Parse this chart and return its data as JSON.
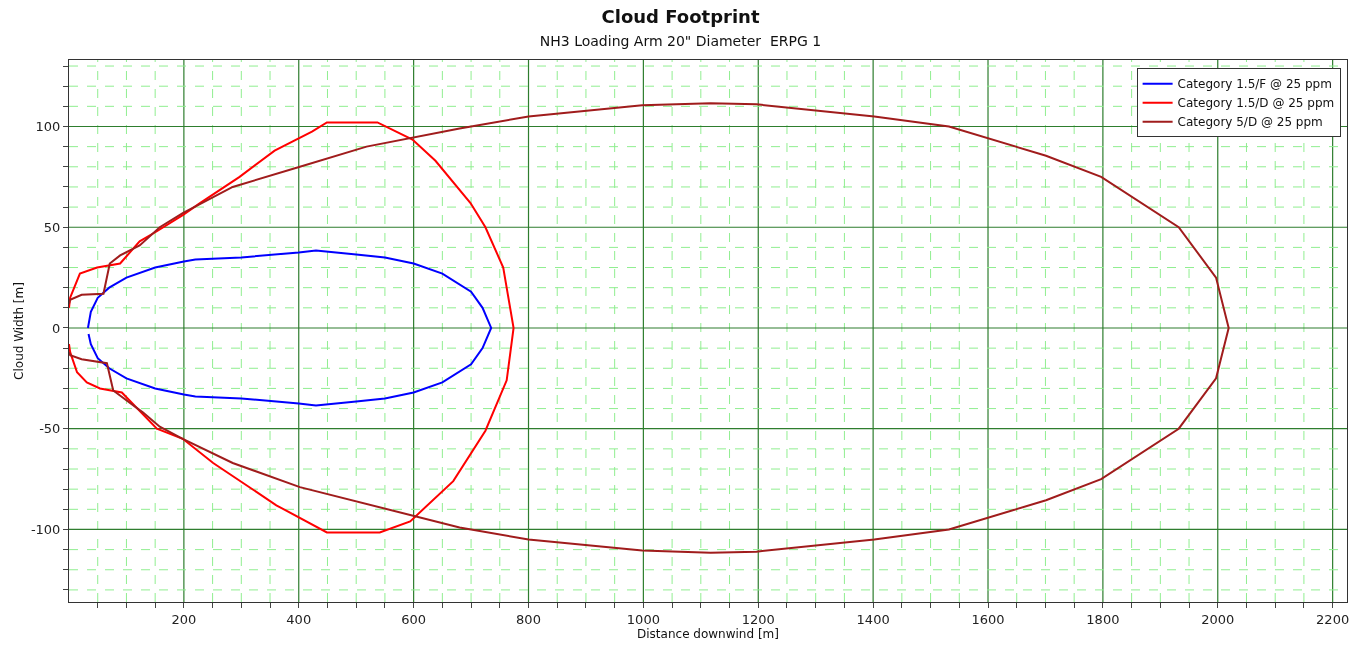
{
  "chart_data": {
    "type": "line",
    "title": "Cloud Footprint",
    "subtitle": "NH3 Loading Arm 20\" Diameter  ERPG 1",
    "xlabel": "Distance downwind [m]",
    "ylabel": "Cloud Width [m]",
    "xlim": [
      0,
      2225
    ],
    "ylim": [
      -136,
      133
    ],
    "xticks": [
      {
        "value": 50,
        "label": null
      },
      {
        "value": 100,
        "label": null
      },
      {
        "value": 150,
        "label": null
      },
      200,
      {
        "value": 250,
        "label": null
      },
      {
        "value": 300,
        "label": null
      },
      {
        "value": 350,
        "label": null
      },
      400,
      {
        "value": 450,
        "label": null
      },
      {
        "value": 500,
        "label": null
      },
      {
        "value": 550,
        "label": null
      },
      600,
      {
        "value": 650,
        "label": null
      },
      {
        "value": 700,
        "label": null
      },
      {
        "value": 750,
        "label": null
      },
      800,
      {
        "value": 850,
        "label": null
      },
      {
        "value": 900,
        "label": null
      },
      {
        "value": 950,
        "label": null
      },
      1000,
      {
        "value": 1050,
        "label": null
      },
      {
        "value": 1100,
        "label": null
      },
      {
        "value": 1150,
        "label": null
      },
      1200,
      {
        "value": 1250,
        "label": null
      },
      {
        "value": 1300,
        "label": null
      },
      {
        "value": 1350,
        "label": null
      },
      1400,
      {
        "value": 1450,
        "label": null
      },
      {
        "value": 1500,
        "label": null
      },
      {
        "value": 1550,
        "label": null
      },
      1600,
      {
        "value": 1650,
        "label": null
      },
      {
        "value": 1700,
        "label": null
      },
      {
        "value": 1750,
        "label": null
      },
      1800,
      {
        "value": 1850,
        "label": null
      },
      {
        "value": 1900,
        "label": null
      },
      {
        "value": 1950,
        "label": null
      },
      2000,
      {
        "value": 2050,
        "label": null
      },
      {
        "value": 2100,
        "label": null
      },
      {
        "value": 2150,
        "label": null
      },
      2200
    ],
    "yticks": [
      {
        "value": -130,
        "label": null
      },
      {
        "value": -120,
        "label": null
      },
      {
        "value": -110,
        "label": null
      },
      -100,
      {
        "value": -90,
        "label": null
      },
      {
        "value": -80,
        "label": null
      },
      {
        "value": -70,
        "label": null
      },
      {
        "value": -60,
        "label": null
      },
      -50,
      {
        "value": -40,
        "label": null
      },
      {
        "value": -30,
        "label": null
      },
      {
        "value": -20,
        "label": null
      },
      {
        "value": -10,
        "label": null
      },
      0,
      {
        "value": 10,
        "label": null
      },
      {
        "value": 20,
        "label": null
      },
      {
        "value": 30,
        "label": null
      },
      {
        "value": 40,
        "label": null
      },
      50,
      {
        "value": 60,
        "label": null
      },
      {
        "value": 70,
        "label": null
      },
      {
        "value": 80,
        "label": null
      },
      {
        "value": 90,
        "label": null
      },
      100,
      {
        "value": 110,
        "label": null
      },
      {
        "value": 120,
        "label": null
      },
      {
        "value": 130,
        "label": null
      }
    ],
    "grid": true,
    "legend": "top right",
    "marker": "none",
    "line_style": "solid",
    "series": [
      {
        "name": "Category 1.5/F @ 25 ppm",
        "color": "#0000ff",
        "x": [
          33,
          38,
          50,
          70,
          100,
          150,
          200,
          220,
          300,
          400,
          430,
          500,
          550,
          600,
          650,
          700,
          720,
          735,
          720,
          700,
          650,
          600,
          550,
          500,
          430,
          400,
          300,
          220,
          200,
          150,
          100,
          70,
          50,
          38,
          34
        ],
        "values": [
          0,
          8,
          15,
          20,
          25,
          30,
          33,
          34,
          35,
          37.5,
          38.5,
          36.5,
          35,
          32,
          27,
          18,
          10,
          0,
          -10,
          -18,
          -27,
          -32,
          -35,
          -36.5,
          -38.5,
          -37.5,
          -35,
          -34,
          -33,
          -30,
          -25,
          -20,
          -15,
          -8,
          -3
        ]
      },
      {
        "name": "Category 1.5/D @ 25 ppm",
        "color": "#ff0000",
        "x": [
          0,
          2,
          19,
          49,
          89,
          123,
          153,
          198,
          228,
          297,
          358,
          423,
          449,
          537,
          598,
          638,
          699,
          725,
          756,
          774,
          762,
          725,
          669,
          594,
          541,
          449,
          361,
          251,
          198,
          153,
          92,
          54,
          31,
          14,
          2,
          0
        ],
        "values": [
          10,
          15,
          27,
          30,
          32,
          43,
          48,
          56,
          62,
          75,
          88,
          97.5,
          102,
          102,
          93.5,
          83,
          62,
          50,
          30,
          0,
          -26,
          -51,
          -76,
          -96,
          -101.5,
          -101.5,
          -88,
          -67,
          -55,
          -50,
          -32,
          -30,
          -27,
          -22,
          -12,
          -8
        ]
      },
      {
        "name": "Category 5/D @ 25 ppm",
        "color": "#a01c1c",
        "x": [
          0,
          2,
          22,
          60,
          71,
          89,
          123,
          158,
          198,
          285,
          402,
          518,
          680,
          800,
          998,
          1117,
          1197,
          1402,
          1532,
          1701,
          1797,
          1932,
          1997,
          2019,
          1997,
          1932,
          1797,
          1701,
          1532,
          1402,
          1197,
          1117,
          998,
          800,
          680,
          402,
          285,
          198,
          158,
          129,
          77,
          66,
          22,
          2,
          0
        ],
        "values": [
          12,
          14,
          16.5,
          17,
          32,
          36,
          41,
          50,
          57,
          70,
          80,
          90,
          99,
          105,
          110.5,
          111.5,
          111,
          105,
          100,
          85.5,
          75,
          50,
          25,
          0,
          -25,
          -50,
          -75,
          -85.5,
          -100,
          -105,
          -111,
          -111.5,
          -110.5,
          -105,
          -99,
          -79,
          -67,
          -55,
          -49,
          -42,
          -31,
          -17.5,
          -15.5,
          -13.5,
          -12
        ]
      }
    ]
  }
}
